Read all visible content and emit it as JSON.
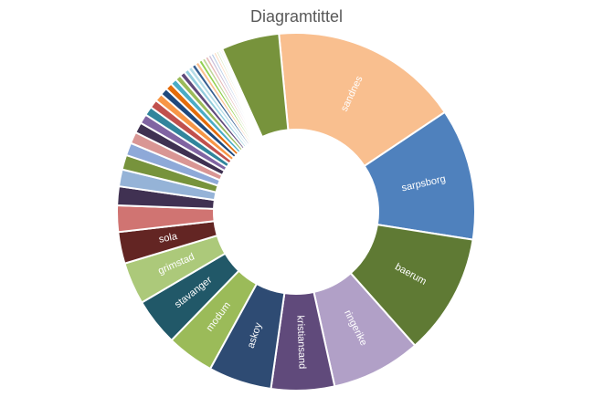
{
  "chart_data": {
    "type": "pie",
    "donut": true,
    "title": "Diagramtittel",
    "start_angle_deg": -5.5,
    "slices": [
      {
        "label": "sandnes",
        "value": 18.0,
        "color": "#f9bf8f"
      },
      {
        "label": "sarpsborg",
        "value": 12.5,
        "color": "#4f81bd"
      },
      {
        "label": "baerum",
        "value": 11.5,
        "color": "#5f7a34"
      },
      {
        "label": "ringerike",
        "value": 8.5,
        "color": "#b1a0c7"
      },
      {
        "label": "kristiansand",
        "value": 6.0,
        "color": "#604a7b"
      },
      {
        "label": "askoy",
        "value": 6.0,
        "color": "#2e4b73"
      },
      {
        "label": "modum",
        "value": 4.5,
        "color": "#9bbb59"
      },
      {
        "label": "stavanger",
        "value": 4.5,
        "color": "#215868"
      },
      {
        "label": "grimstad",
        "value": 4.0,
        "color": "#acc97a"
      },
      {
        "label": "sola",
        "value": 3.0,
        "color": "#632523"
      },
      {
        "label": "",
        "value": 2.5,
        "color": "#d07472"
      },
      {
        "label": "",
        "value": 1.8,
        "color": "#403152"
      },
      {
        "label": "",
        "value": 1.6,
        "color": "#95b3d7"
      },
      {
        "label": "",
        "value": 1.4,
        "color": "#77933c"
      },
      {
        "label": "",
        "value": 1.2,
        "color": "#8ea9d8"
      },
      {
        "label": "",
        "value": 1.1,
        "color": "#d99694"
      },
      {
        "label": "",
        "value": 1.0,
        "color": "#3f3151"
      },
      {
        "label": "",
        "value": 0.9,
        "color": "#8064a2"
      },
      {
        "label": "",
        "value": 0.85,
        "color": "#31859c"
      },
      {
        "label": "",
        "value": 0.8,
        "color": "#c0504d"
      },
      {
        "label": "",
        "value": 0.75,
        "color": "#f79646"
      },
      {
        "label": "",
        "value": 0.7,
        "color": "#1f497d"
      },
      {
        "label": "",
        "value": 0.65,
        "color": "#e46c0a"
      },
      {
        "label": "",
        "value": 0.6,
        "color": "#4bacc6"
      },
      {
        "label": "",
        "value": 0.55,
        "color": "#9bbb59"
      },
      {
        "label": "",
        "value": 0.5,
        "color": "#604a7b"
      },
      {
        "label": "",
        "value": 0.45,
        "color": "#93cddd"
      },
      {
        "label": "",
        "value": 0.42,
        "color": "#b7dee8"
      },
      {
        "label": "",
        "value": 0.4,
        "color": "#376092"
      },
      {
        "label": "",
        "value": 0.38,
        "color": "#fac090"
      },
      {
        "label": "",
        "value": 0.36,
        "color": "#92d050"
      },
      {
        "label": "",
        "value": 0.34,
        "color": "#c3d69b"
      },
      {
        "label": "",
        "value": 0.32,
        "color": "#e6b9b8"
      },
      {
        "label": "",
        "value": 0.3,
        "color": "#ccc1da"
      },
      {
        "label": "",
        "value": 0.28,
        "color": "#b9cde5"
      },
      {
        "label": "",
        "value": 0.26,
        "color": "#fcd5b5"
      },
      {
        "label": "",
        "value": 0.24,
        "color": "#d7e4bd"
      },
      {
        "label": "",
        "value": 0.22,
        "color": "#dbeef4"
      },
      {
        "label": "",
        "value": 0.2,
        "color": "#f2dcdb"
      },
      {
        "label": "",
        "value": 5.5,
        "color": "#77933c"
      }
    ]
  }
}
